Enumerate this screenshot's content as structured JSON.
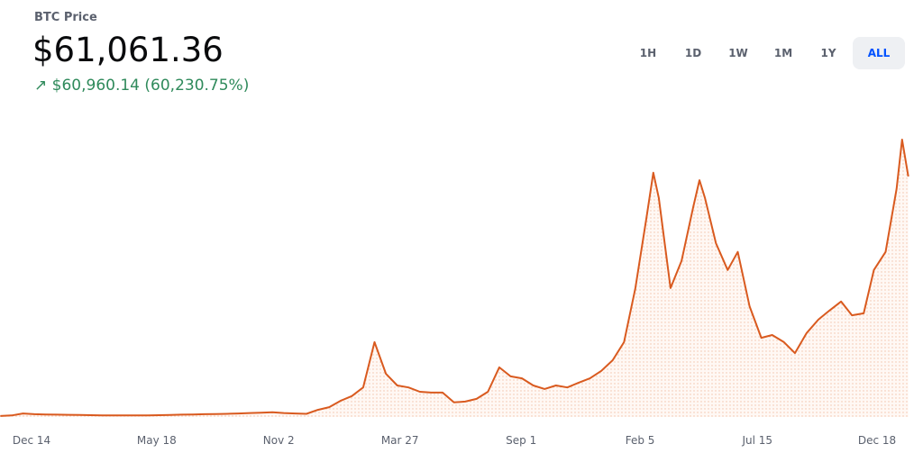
{
  "header": {
    "label": "BTC Price",
    "price": "$61,061.36",
    "change": "$60,960.14",
    "change_percent": "(60,230.75%)"
  },
  "range_buttons": {
    "items": [
      "1H",
      "1D",
      "1W",
      "1M",
      "1Y",
      "ALL"
    ],
    "active": "ALL"
  },
  "chart_data": {
    "type": "line",
    "color": "#d95a1f",
    "x": [
      0,
      14.5,
      29,
      43.5,
      58,
      72.5,
      87,
      101.5,
      116,
      130.5,
      145,
      159.5,
      174,
      188.5,
      203,
      217.5,
      232,
      246.5,
      261,
      275.5,
      290,
      304.5,
      319,
      333.5,
      348,
      362.5,
      377,
      391.5,
      406,
      420.5,
      435,
      449.5,
      464,
      478.5,
      493,
      507.5,
      522,
      536.5,
      551,
      565.5,
      580,
      594.5,
      609,
      623.5,
      638,
      652.5,
      667,
      681.5,
      696,
      710.5,
      725,
      739.5,
      754,
      768.5,
      783,
      797.5,
      812,
      826.5,
      835,
      842,
      857,
      871,
      886,
      894,
      901,
      915,
      930,
      943,
      958,
      973,
      987,
      1002,
      1016,
      1031,
      1046,
      1060,
      1075,
      1089,
      1104,
      1117,
      1132,
      1146,
      1153,
      1161
    ],
    "values": [
      250,
      400,
      900,
      700,
      650,
      600,
      550,
      500,
      450,
      420,
      400,
      380,
      400,
      420,
      450,
      500,
      600,
      650,
      700,
      750,
      800,
      900,
      1000,
      1100,
      1200,
      1000,
      900,
      800,
      1800,
      2500,
      4100,
      5300,
      7500,
      19000,
      11000,
      8000,
      7500,
      6400,
      6200,
      6200,
      3700,
      3900,
      4600,
      6400,
      12600,
      10300,
      9800,
      8000,
      7100,
      8000,
      7500,
      8700,
      9800,
      11700,
      14400,
      19000,
      32700,
      51000,
      62000,
      55600,
      32700,
      39600,
      53300,
      60100,
      55600,
      44100,
      37300,
      41900,
      28100,
      20100,
      20800,
      19000,
      16200,
      21300,
      24700,
      27000,
      29300,
      25800,
      26300,
      37300,
      41900,
      57900,
      70400,
      61061
    ],
    "xticks": [
      {
        "value": 40,
        "label": "Dec 14"
      },
      {
        "value": 200,
        "label": "May 18"
      },
      {
        "value": 356,
        "label": "Nov 2"
      },
      {
        "value": 511,
        "label": "Mar 27"
      },
      {
        "value": 666,
        "label": "Sep 1"
      },
      {
        "value": 818,
        "label": "Feb 5"
      },
      {
        "value": 968,
        "label": "Jul 15"
      },
      {
        "value": 1121,
        "label": "Dec 18"
      }
    ]
  }
}
